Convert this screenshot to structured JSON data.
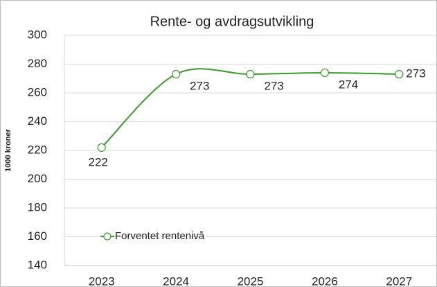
{
  "chart_data": {
    "type": "line",
    "title": "Rente- og avdragsutvikling",
    "y_label": "1000 kroner",
    "categories": [
      "2023",
      "2024",
      "2025",
      "2026",
      "2027"
    ],
    "series": [
      {
        "name": "Forventet rentenivå",
        "color": "#3a9a2a",
        "values": [
          222,
          273,
          273,
          274,
          273
        ]
      }
    ],
    "ylim": [
      140,
      300
    ],
    "yticks": [
      140,
      160,
      180,
      200,
      220,
      240,
      260,
      280,
      300
    ],
    "grid": true,
    "smooth": true,
    "legend": "lower left"
  }
}
